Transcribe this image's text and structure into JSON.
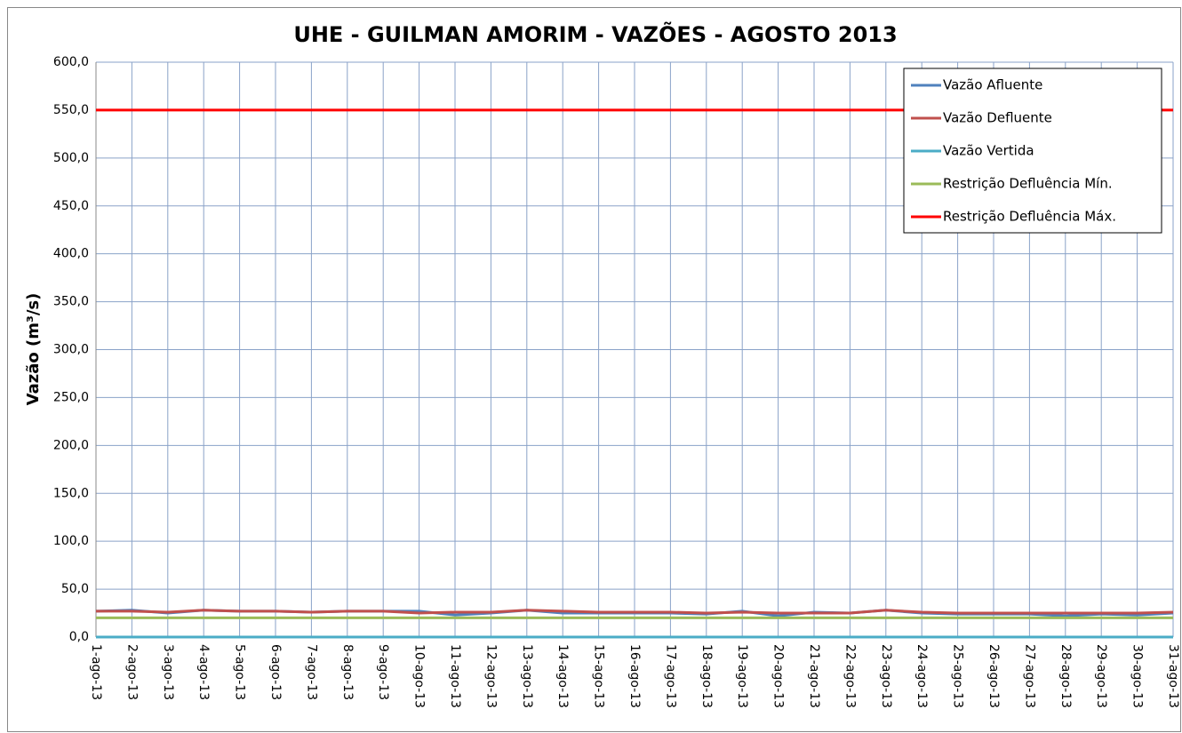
{
  "chart_data": {
    "type": "line",
    "title": "UHE - GUILMAN AMORIM - VAZÕES - AGOSTO 2013",
    "y_label": "Vazão (m³/s)",
    "categories": [
      "1-ago-13",
      "2-ago-13",
      "3-ago-13",
      "4-ago-13",
      "5-ago-13",
      "6-ago-13",
      "7-ago-13",
      "8-ago-13",
      "9-ago-13",
      "10-ago-13",
      "11-ago-13",
      "12-ago-13",
      "13-ago-13",
      "14-ago-13",
      "15-ago-13",
      "16-ago-13",
      "17-ago-13",
      "18-ago-13",
      "19-ago-13",
      "20-ago-13",
      "21-ago-13",
      "22-ago-13",
      "23-ago-13",
      "24-ago-13",
      "25-ago-13",
      "26-ago-13",
      "27-ago-13",
      "28-ago-13",
      "29-ago-13",
      "30-ago-13",
      "31-ago-13"
    ],
    "series": [
      {
        "name": "Vazão Afluente",
        "color": "#4f81bd",
        "values": [
          27,
          28,
          25,
          28,
          27,
          27,
          26,
          27,
          27,
          27,
          23,
          25,
          28,
          25,
          25,
          25,
          25,
          24,
          27,
          22,
          26,
          25,
          28,
          25,
          24,
          24,
          24,
          22,
          24,
          23,
          25
        ]
      },
      {
        "name": "Vazão Defluente",
        "color": "#c0504d",
        "values": [
          27,
          27,
          26,
          28,
          27,
          27,
          26,
          27,
          27,
          25,
          26,
          26,
          28,
          27,
          26,
          26,
          26,
          25,
          26,
          25,
          25,
          25,
          28,
          26,
          25,
          25,
          25,
          25,
          25,
          25,
          26
        ]
      },
      {
        "name": "Vazão Vertida",
        "color": "#4bacc6",
        "values": [
          0,
          0,
          0,
          0,
          0,
          0,
          0,
          0,
          0,
          0,
          0,
          0,
          0,
          0,
          0,
          0,
          0,
          0,
          0,
          0,
          0,
          0,
          0,
          0,
          0,
          0,
          0,
          0,
          0,
          0,
          0
        ]
      },
      {
        "name": "Restrição Defluência Mín.",
        "color": "#9bbb59",
        "values": [
          20,
          20,
          20,
          20,
          20,
          20,
          20,
          20,
          20,
          20,
          20,
          20,
          20,
          20,
          20,
          20,
          20,
          20,
          20,
          20,
          20,
          20,
          20,
          20,
          20,
          20,
          20,
          20,
          20,
          20,
          20
        ]
      },
      {
        "name": "Restrição Defluência Máx.",
        "color": "#ff0000",
        "values": [
          550,
          550,
          550,
          550,
          550,
          550,
          550,
          550,
          550,
          550,
          550,
          550,
          550,
          550,
          550,
          550,
          550,
          550,
          550,
          550,
          550,
          550,
          550,
          550,
          550,
          550,
          550,
          550,
          550,
          550,
          550
        ]
      }
    ],
    "ylim": [
      0,
      600
    ],
    "yticks": [
      {
        "value": 0,
        "label": "0,0"
      },
      {
        "value": 50,
        "label": "50,0"
      },
      {
        "value": 100,
        "label": "100,0"
      },
      {
        "value": 150,
        "label": "150,0"
      },
      {
        "value": 200,
        "label": "200,0"
      },
      {
        "value": 250,
        "label": "250,0"
      },
      {
        "value": 300,
        "label": "300,0"
      },
      {
        "value": 350,
        "label": "350,0"
      },
      {
        "value": 400,
        "label": "400,0"
      },
      {
        "value": 450,
        "label": "450,0"
      },
      {
        "value": 500,
        "label": "500,0"
      },
      {
        "value": 550,
        "label": "550,0"
      },
      {
        "value": 600,
        "label": "600,0"
      }
    ],
    "grid": true,
    "legend": "top-right"
  }
}
